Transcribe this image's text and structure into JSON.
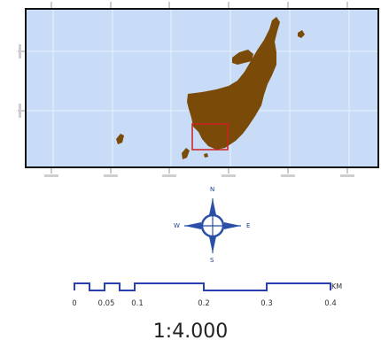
{
  "map": {
    "water_color": "#c9dcf7",
    "land_color": "#7a4a08",
    "grid_color": "#e8f0fc",
    "frame_color": "#111111",
    "extent_box_color": "#cc1f1f"
  },
  "compass": {
    "north": "N",
    "south": "S",
    "east": "E",
    "west": "W",
    "color": "#2b4fa8"
  },
  "scale_bar": {
    "unit": "KM",
    "labels": [
      "0",
      "0.05",
      "0.1",
      "0.2",
      "0.3",
      "0.4"
    ],
    "color": "#2b3fb0"
  },
  "scale": {
    "ratio": "1:4.000"
  }
}
